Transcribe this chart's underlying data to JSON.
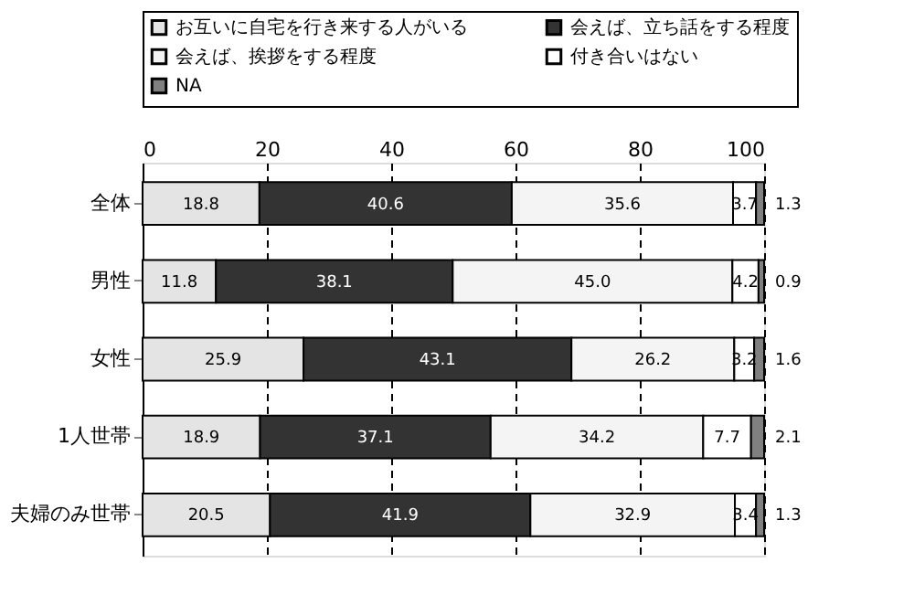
{
  "chart_data": {
    "type": "bar",
    "orientation": "horizontal",
    "stacked": true,
    "data_labels": true,
    "grid": "x",
    "legend": "top",
    "categories": [
      "全体",
      "男性",
      "女性",
      "1人世帯",
      "夫婦のみ世帯"
    ],
    "xlim": [
      0,
      100
    ],
    "xticks": [
      0,
      20,
      40,
      60,
      80,
      100
    ],
    "series": [
      {
        "name": "お互いに自宅を行き来する人がいる",
        "color": "#e4e4e4",
        "values": [
          18.8,
          11.8,
          25.9,
          18.9,
          20.5
        ]
      },
      {
        "name": "会えば、立ち話をする程度",
        "color": "#333333",
        "values": [
          40.6,
          38.1,
          43.1,
          37.1,
          41.9
        ]
      },
      {
        "name": "会えば、挨拶をする程度",
        "color": "#f4f4f4",
        "values": [
          35.6,
          45.0,
          26.2,
          34.2,
          32.9
        ],
        "value_labels": [
          "35.6",
          "45.0",
          "26.2",
          "34.2",
          "32.9"
        ]
      },
      {
        "name": "付き合いはない",
        "color": "#ffffff",
        "values": [
          3.7,
          4.2,
          3.2,
          7.7,
          3.4
        ]
      },
      {
        "name": "NA",
        "color": "#808080",
        "values": [
          1.3,
          0.9,
          1.6,
          2.1,
          1.3
        ]
      }
    ]
  }
}
